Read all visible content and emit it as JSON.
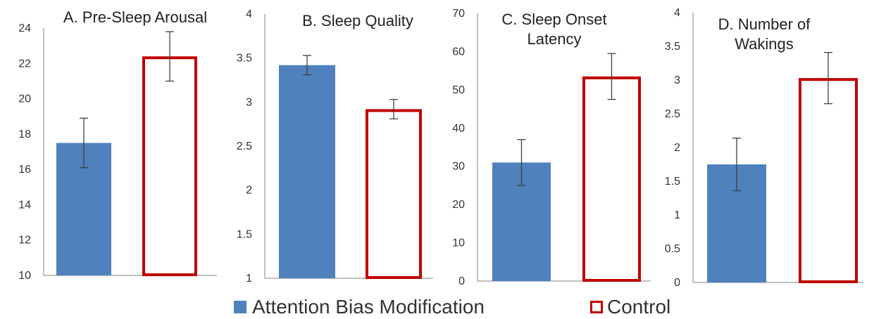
{
  "colors": {
    "abm_fill": "#4F81BD",
    "control_stroke": "#C00000",
    "axis": "#808080",
    "error_bar": "#404040",
    "text": "#333333"
  },
  "legend": {
    "abm_label": "Attention Bias Modification",
    "control_label": "Control"
  },
  "chart_data": [
    {
      "type": "bar",
      "title": "A. Pre-Sleep Arousal",
      "categories": [
        "Attention Bias Modification",
        "Control"
      ],
      "values": [
        17.5,
        22.4
      ],
      "error": [
        1.4,
        1.4
      ],
      "ylim": [
        10,
        24
      ],
      "yticks": [
        "10",
        "12",
        "14",
        "16",
        "18",
        "20",
        "22",
        "24"
      ],
      "yticks_values": [
        10,
        12,
        14,
        16,
        18,
        20,
        22,
        24
      ]
    },
    {
      "type": "bar",
      "title": "B. Sleep Quality",
      "categories": [
        "Attention Bias Modification",
        "Control"
      ],
      "values": [
        3.42,
        2.92
      ],
      "error": [
        0.11,
        0.11
      ],
      "ylim": [
        1,
        4
      ],
      "yticks": [
        "1",
        "1.5",
        "2",
        "2.5",
        "3",
        "3.5",
        "4"
      ],
      "yticks_values": [
        1,
        1.5,
        2,
        2.5,
        3,
        3.5,
        4
      ]
    },
    {
      "type": "bar",
      "title": "C. Sleep Onset Latency",
      "title_lines": [
        "C. Sleep Onset",
        "Latency"
      ],
      "categories": [
        "Attention Bias Modification",
        "Control"
      ],
      "values": [
        31,
        53.5
      ],
      "error": [
        6,
        6
      ],
      "ylim": [
        0,
        70
      ],
      "yticks": [
        "0",
        "10",
        "20",
        "30",
        "40",
        "50",
        "60",
        "70"
      ],
      "yticks_values": [
        0,
        10,
        20,
        30,
        40,
        50,
        60,
        70
      ]
    },
    {
      "type": "bar",
      "title": "D. Number of Wakings",
      "title_lines": [
        "D. Number of",
        "Wakings"
      ],
      "categories": [
        "Attention Bias Modification",
        "Control"
      ],
      "values": [
        1.75,
        3.03
      ],
      "error": [
        0.39,
        0.38
      ],
      "ylim": [
        0,
        4
      ],
      "yticks": [
        "0",
        "0.5",
        "1",
        "1.5",
        "2",
        "2.5",
        "3",
        "3.5",
        "4"
      ],
      "yticks_values": [
        0,
        0.5,
        1,
        1.5,
        2,
        2.5,
        3,
        3.5,
        4
      ]
    }
  ]
}
